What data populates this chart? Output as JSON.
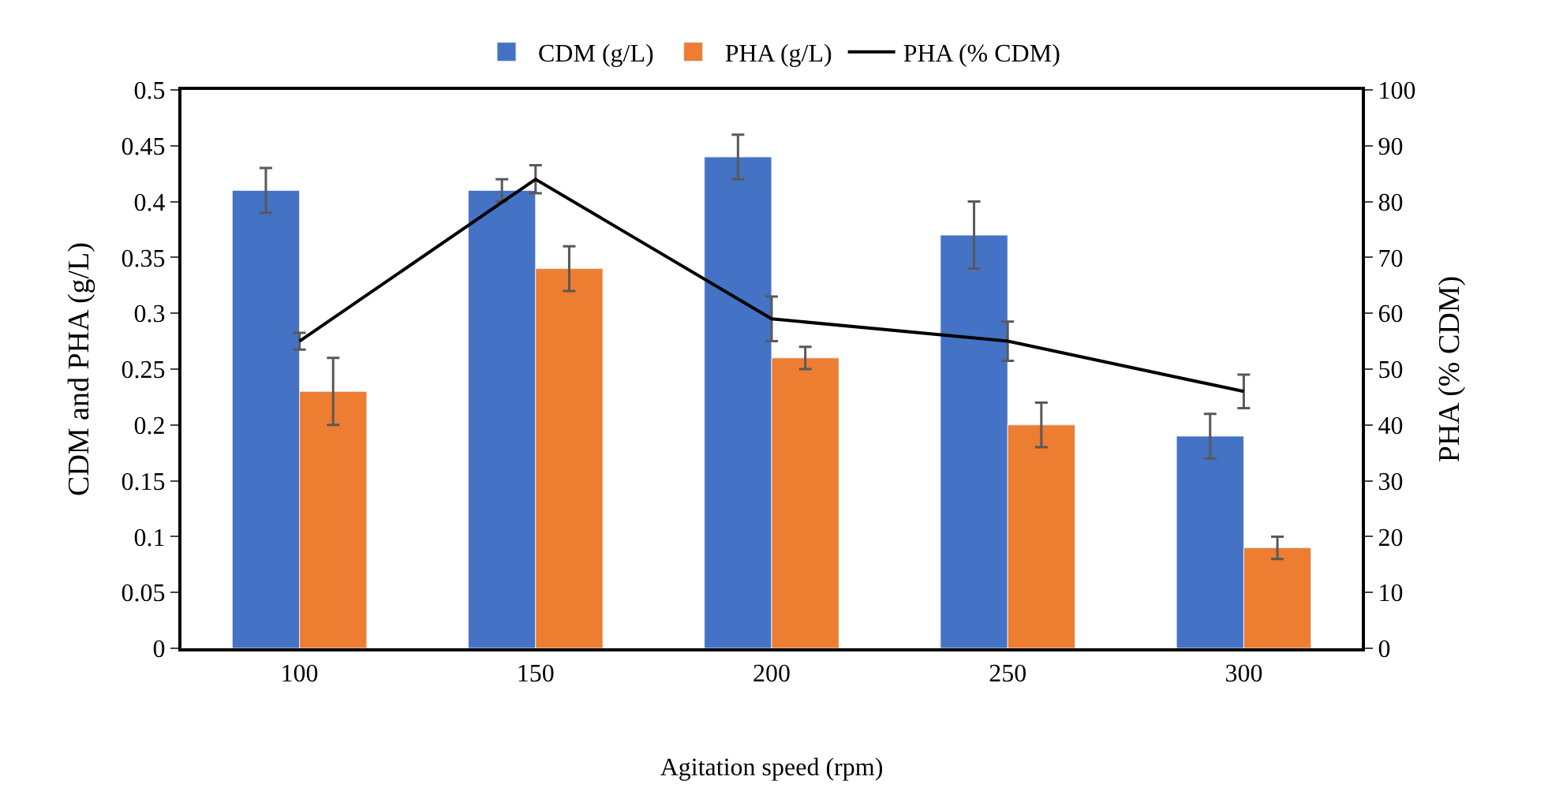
{
  "chart_data": {
    "type": "bar",
    "xlabel": "Agitation speed (rpm)",
    "ylabel": "CDM and PHA (g/L)",
    "y2label": "PHA (% CDM)",
    "categories": [
      "100",
      "150",
      "200",
      "250",
      "300"
    ],
    "series": [
      {
        "name": "CDM (g/L)",
        "color": "#4472c4",
        "values": [
          0.41,
          0.41,
          0.44,
          0.37,
          0.19
        ],
        "errors": [
          0.02,
          0.01,
          0.02,
          0.03,
          0.02
        ]
      },
      {
        "name": "PHA (g/L)",
        "color": "#ed7d31",
        "values": [
          0.23,
          0.34,
          0.26,
          0.2,
          0.09
        ],
        "errors": [
          0.03,
          0.02,
          0.01,
          0.02,
          0.01
        ]
      },
      {
        "name": "PHA (% CDM)",
        "type": "line",
        "axis": "y2",
        "color": "#000000",
        "values": [
          55,
          84,
          59,
          55,
          46
        ],
        "errors": [
          1.5,
          2.5,
          4,
          3.5,
          3
        ]
      }
    ],
    "ylim": [
      0,
      0.5
    ],
    "yticks": [
      0,
      0.05,
      0.1,
      0.15,
      0.2,
      0.25,
      0.3,
      0.35,
      0.4,
      0.45,
      0.5
    ],
    "y2lim": [
      0,
      100
    ],
    "y2ticks": [
      0,
      10,
      20,
      30,
      40,
      50,
      60,
      70,
      80,
      90,
      100
    ],
    "legend": "top",
    "marker": "none",
    "line_style": "solid"
  }
}
